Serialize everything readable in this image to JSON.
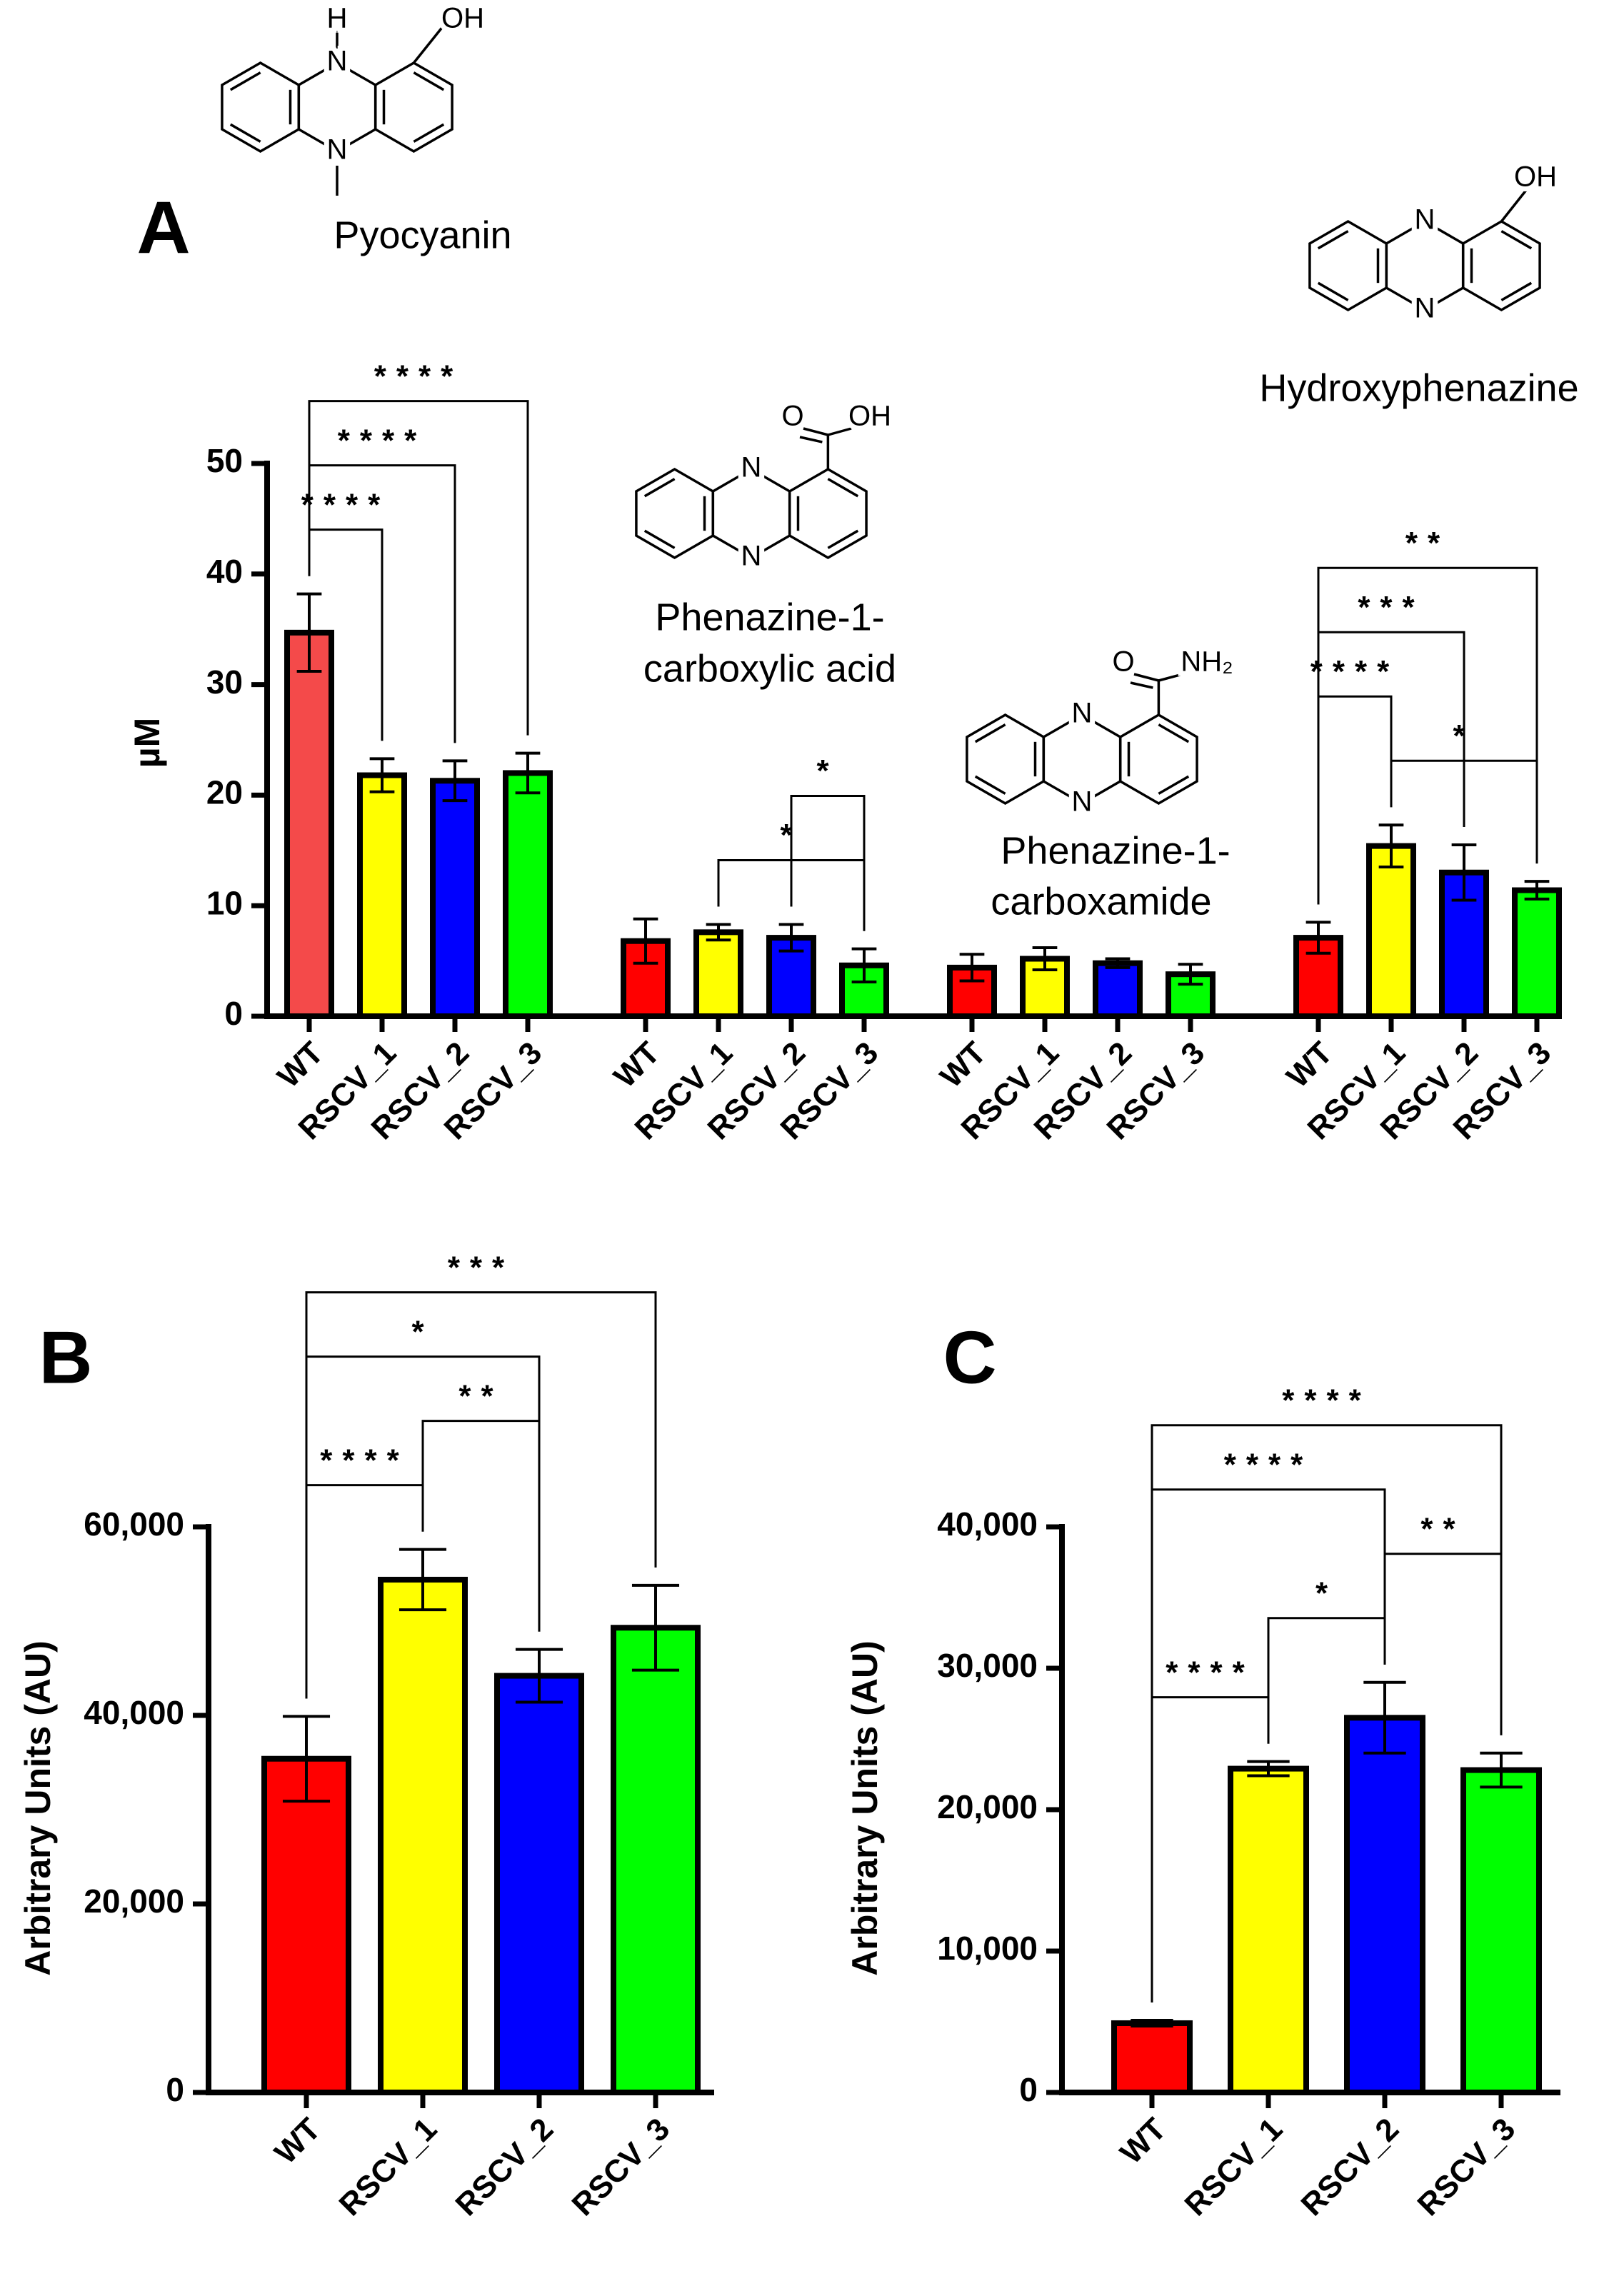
{
  "structures": [
    {
      "name": [
        "Pyocyanin"
      ],
      "atoms": [
        "H",
        "N",
        "N",
        "OH"
      ]
    },
    {
      "name": [
        "Phenazine-1-",
        "carboxylic acid"
      ],
      "atoms": [
        "N",
        "N",
        "O",
        "OH"
      ]
    },
    {
      "name": [
        "Phenazine-1-",
        "carboxamide"
      ],
      "atoms": [
        "N",
        "N",
        "O",
        "NH₂"
      ]
    },
    {
      "name": [
        "Hydroxyphenazine"
      ],
      "atoms": [
        "N",
        "N",
        "OH"
      ]
    }
  ],
  "chart_data": [
    {
      "type": "bar",
      "panel_label": "A",
      "ylabel": "µM",
      "ylim": [
        0,
        50
      ],
      "yticks": [
        0,
        10,
        20,
        30,
        40,
        50
      ],
      "groups": [
        {
          "categories": [
            "WT",
            "RSCV_1",
            "RSCV_2",
            "RSCV_3"
          ],
          "values": [
            34.7,
            21.8,
            21.3,
            22.0
          ],
          "errors": [
            3.5,
            1.5,
            1.8,
            1.8
          ],
          "colors": [
            "#f44a4a",
            "#ffff00",
            "#0000ff",
            "#00ff00"
          ],
          "comparisons": [
            {
              "pair": [
                0,
                1
              ],
              "label": "****"
            },
            {
              "pair": [
                0,
                2
              ],
              "label": "****"
            },
            {
              "pair": [
                0,
                3
              ],
              "label": "****"
            }
          ]
        },
        {
          "categories": [
            "WT",
            "RSCV_1",
            "RSCV_2",
            "RSCV_3"
          ],
          "values": [
            6.8,
            7.6,
            7.1,
            4.6
          ],
          "errors": [
            2.0,
            0.7,
            1.2,
            1.5
          ],
          "colors": [
            "#ff0000",
            "#ffff00",
            "#0000ff",
            "#00ff00"
          ],
          "comparisons": [
            {
              "pair": [
                1,
                3
              ],
              "label": "*"
            },
            {
              "pair": [
                2,
                3
              ],
              "label": "*"
            }
          ]
        },
        {
          "categories": [
            "WT",
            "RSCV_1",
            "RSCV_2",
            "RSCV_3"
          ],
          "values": [
            4.4,
            5.2,
            4.8,
            3.8
          ],
          "errors": [
            1.2,
            1.0,
            0.4,
            0.9
          ],
          "colors": [
            "#ff0000",
            "#ffff00",
            "#0000ff",
            "#00ff00"
          ],
          "comparisons": []
        },
        {
          "categories": [
            "WT",
            "RSCV_1",
            "RSCV_2",
            "RSCV_3"
          ],
          "values": [
            7.1,
            15.4,
            13.0,
            11.4
          ],
          "errors": [
            1.4,
            1.9,
            2.5,
            0.8
          ],
          "colors": [
            "#ff0000",
            "#ffff00",
            "#0000ff",
            "#00ff00"
          ],
          "comparisons": [
            {
              "pair": [
                1,
                3
              ],
              "label": "*"
            },
            {
              "pair": [
                0,
                1
              ],
              "label": "****"
            },
            {
              "pair": [
                0,
                2
              ],
              "label": "***"
            },
            {
              "pair": [
                0,
                3
              ],
              "label": "**"
            }
          ]
        }
      ]
    },
    {
      "type": "bar",
      "panel_label": "B",
      "ylabel": "Arbitrary Units (AU)",
      "ylim": [
        0,
        60000
      ],
      "yticks": [
        0,
        {
          "value": 20000,
          "label": "20,000"
        },
        {
          "value": 40000,
          "label": "40,000"
        },
        {
          "value": 60000,
          "label": "60,000"
        }
      ],
      "groups": [
        {
          "categories": [
            "WT",
            "RSCV_1",
            "RSCV_2",
            "RSCV_3"
          ],
          "values": [
            35400,
            54400,
            44200,
            49300
          ],
          "errors": [
            4500,
            3200,
            2800,
            4500
          ],
          "colors": [
            "#ff0000",
            "#ffff00",
            "#0000ff",
            "#00ff00"
          ],
          "comparisons": [
            {
              "pair": [
                0,
                1
              ],
              "label": "****"
            },
            {
              "pair": [
                1,
                2
              ],
              "label": "**"
            },
            {
              "pair": [
                0,
                2
              ],
              "label": "*"
            },
            {
              "pair": [
                0,
                3
              ],
              "label": "***"
            }
          ]
        }
      ]
    },
    {
      "type": "bar",
      "panel_label": "C",
      "ylabel": "Arbitrary Units (AU)",
      "ylim": [
        0,
        40000
      ],
      "yticks": [
        0,
        {
          "value": 10000,
          "label": "10,000"
        },
        {
          "value": 20000,
          "label": "20,000"
        },
        {
          "value": 30000,
          "label": "30,000"
        },
        {
          "value": 40000,
          "label": "40,000"
        }
      ],
      "groups": [
        {
          "categories": [
            "WT",
            "RSCV_1",
            "RSCV_2",
            "RSCV_3"
          ],
          "values": [
            4900,
            22900,
            26500,
            22800
          ],
          "errors": [
            200,
            500,
            2500,
            1200
          ],
          "colors": [
            "#ff0000",
            "#ffff00",
            "#0000ff",
            "#00ff00"
          ],
          "comparisons": [
            {
              "pair": [
                0,
                1
              ],
              "label": "****"
            },
            {
              "pair": [
                1,
                2
              ],
              "label": "*"
            },
            {
              "pair": [
                2,
                3
              ],
              "label": "**"
            },
            {
              "pair": [
                0,
                2
              ],
              "label": "****"
            },
            {
              "pair": [
                0,
                3
              ],
              "label": "****"
            }
          ]
        }
      ]
    }
  ]
}
